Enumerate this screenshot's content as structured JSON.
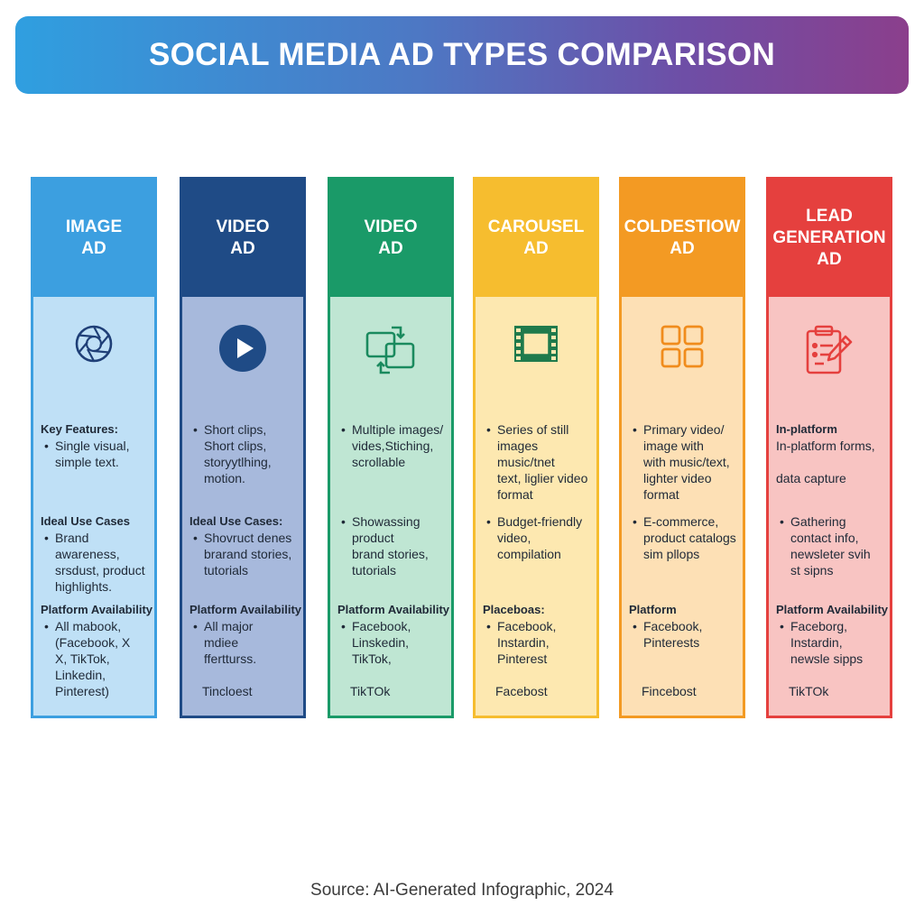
{
  "title": "SOCIAL MEDIA AD TYPES COMPARISON",
  "footer": "Source: AI-Generated Infographic, 2024",
  "columns": [
    {
      "head": [
        "IMAGE",
        "AD"
      ],
      "icon": "camera-aperture-icon",
      "colors": {
        "head": "#3c9fe0",
        "body": "#bfe0f6",
        "border": "#3c9fe0",
        "icon": "#1f3f77"
      },
      "features_heading": "Key Features:",
      "features": [
        "Single visual,\nsimple text."
      ],
      "features_plain": "",
      "use_heading": "Ideal Use Cases",
      "use_cases": [
        "Brand awareness,\nsrsdust, product\nhighlights."
      ],
      "platform_heading": "Platform Availability",
      "platforms": [
        "All mabook,\n(Facebook, X\nX, TikTok,\nLinkedin,\nPinterest)"
      ],
      "platform_extra": ""
    },
    {
      "head": [
        "VIDEO",
        "AD"
      ],
      "icon": "play-button-icon",
      "colors": {
        "head": "#1f4b86",
        "body": "#a7b9dc",
        "border": "#1f4b86",
        "icon": "#1f4b86"
      },
      "features_heading": "",
      "features": [
        "Short clips,\nShort clips,\nstoryytlhing,\nmotion."
      ],
      "features_plain": "",
      "use_heading": "Ideal Use Cases:",
      "use_cases": [
        "Shovruct denes\nbrarand stories,\ntutorials"
      ],
      "platform_heading": "Platform Availability",
      "platforms": [
        "All major\nmdiee\nffertturss."
      ],
      "platform_extra": "Tincloest"
    },
    {
      "head": [
        "VIDEO",
        "AD"
      ],
      "icon": "swap-frames-icon",
      "colors": {
        "head": "#1a9a68",
        "body": "#bfe6d3",
        "border": "#1a9a68",
        "icon": "#1a8a5e"
      },
      "features_heading": "",
      "features": [
        "Multiple images/\nvides,Stiching,\nscrollable"
      ],
      "features_plain": "",
      "use_heading": "",
      "use_cases": [
        "Showassing\nproduct\nbrand stories,\ntutorials"
      ],
      "platform_heading": "Platform Availability",
      "platforms": [
        "Facebook,\nLinskedin,\nTikTok,"
      ],
      "platform_extra": "TikTOk"
    },
    {
      "head": [
        "CAROUSEL",
        "AD"
      ],
      "icon": "film-strip-icon",
      "colors": {
        "head": "#f6bd2f",
        "body": "#fde8b0",
        "border": "#f6bd2f",
        "icon": "#1f7a4c"
      },
      "features_heading": "",
      "features": [
        "Series of still\nimages\nmusic/tnet\ntext, liglier video\nformat"
      ],
      "features_plain": "",
      "use_heading": "",
      "use_cases": [
        "Budget-friendly\nvideo, compilation"
      ],
      "platform_heading": "Placeboas:",
      "platforms": [
        "Facebook,\nInstardin,\nPinterest"
      ],
      "platform_extra": "Facebost"
    },
    {
      "head": [
        "COLDESTIOW",
        "AD"
      ],
      "icon": "grid-icon",
      "colors": {
        "head": "#f39a23",
        "body": "#fde0b5",
        "border": "#f39a23",
        "icon": "#f08c1c"
      },
      "features_heading": "",
      "features": [
        "Primary video/\nimage with\nwith music/text,\nlighter video\nformat"
      ],
      "features_plain": "",
      "use_heading": "",
      "use_cases": [
        "E-commerce,\nproduct catalogs\nsim pllops"
      ],
      "platform_heading": "Platform",
      "platforms": [
        "Facebook,\nPinterests"
      ],
      "platform_extra": "Fincebost"
    },
    {
      "head": [
        "LEAD",
        "GENERATION",
        "AD"
      ],
      "icon": "clipboard-edit-icon",
      "colors": {
        "head": "#e5403e",
        "body": "#f8c4c2",
        "border": "#e5403e",
        "icon": "#e5403e"
      },
      "features_heading": "In-platform",
      "features": [],
      "features_plain": "In-platform forms,\n\ndata capture",
      "use_heading": "",
      "use_cases": [
        "Gathering\ncontact info,\nnewsleter svih\nst sipns"
      ],
      "platform_heading": "Platform Availability",
      "platforms": [
        "Faceborg,\nInstardin,\nnewsle sipps"
      ],
      "platform_extra": "TikTOk"
    }
  ]
}
